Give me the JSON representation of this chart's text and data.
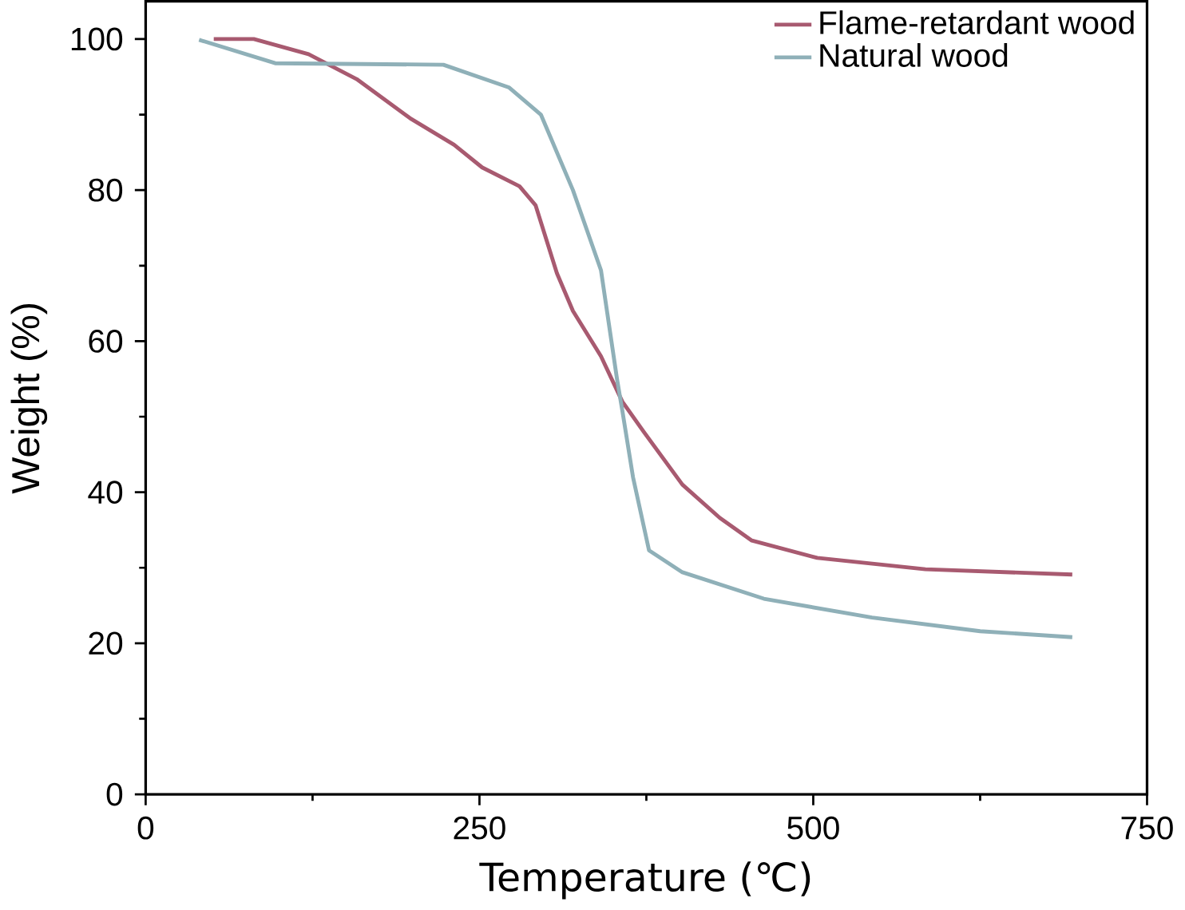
{
  "chart_data": {
    "type": "line",
    "xlabel": "Temperature (℃)",
    "ylabel": "Weight (%)",
    "xlim": [
      0,
      750
    ],
    "ylim": [
      0,
      105
    ],
    "xticks": [
      0,
      250,
      500,
      750
    ],
    "yticks": [
      0,
      20,
      40,
      60,
      80,
      100
    ],
    "legend": "top right",
    "grid": false,
    "series": [
      {
        "name": "Flame-retardant wood",
        "color": "#a85a70",
        "x": [
          51,
          81,
          122,
          158,
          199,
          231,
          252,
          280,
          292,
          308,
          320,
          341,
          357,
          373,
          402,
          430,
          454,
          503,
          584,
          694
        ],
        "values": [
          100,
          100,
          98,
          94.7,
          89.4,
          86,
          83,
          80.5,
          78,
          69,
          64,
          58,
          52,
          48,
          41,
          36.6,
          33.6,
          31.3,
          29.8,
          29.1
        ]
      },
      {
        "name": "Natural wood",
        "color": "#8fb0b8",
        "x": [
          40,
          97,
          223,
          272,
          296,
          320,
          341,
          353,
          357,
          365,
          377,
          402,
          463,
          544,
          625,
          694
        ],
        "values": [
          99.9,
          96.8,
          96.6,
          93.6,
          90,
          80,
          69.4,
          55,
          50.8,
          42,
          32.3,
          29.4,
          25.9,
          23.4,
          21.6,
          20.8
        ]
      }
    ]
  }
}
